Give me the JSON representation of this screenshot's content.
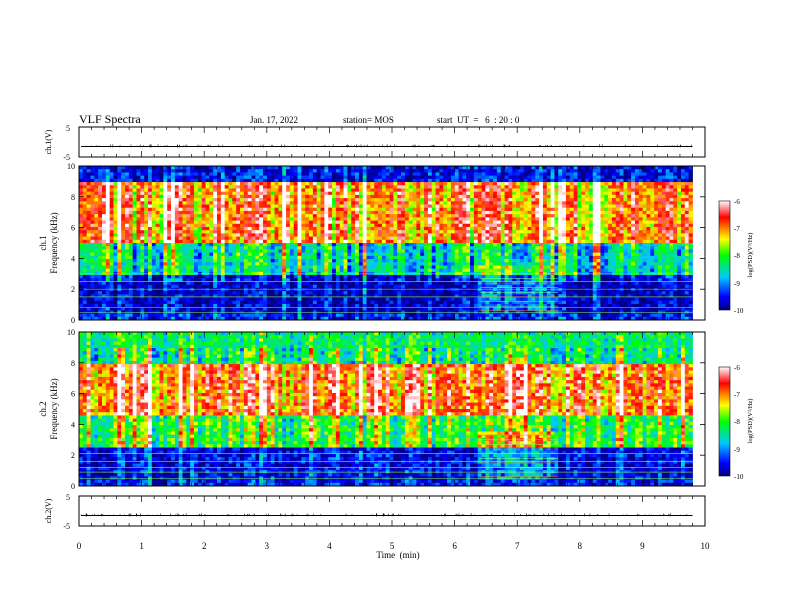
{
  "header": {
    "title": "VLF Spectra",
    "date": "Jan. 17, 2022",
    "station": "station= MOS",
    "start_ut": "start  UT  =   6  : 20 : 0"
  },
  "x_axis": {
    "label": "Time  (min)",
    "ticks": [
      "0",
      "1",
      "2",
      "3",
      "4",
      "5",
      "6",
      "7",
      "8",
      "9",
      "10"
    ]
  },
  "panels": {
    "ch1_waveform": {
      "label": "ch.1(V)",
      "ticks": [
        "5",
        "-5"
      ]
    },
    "ch1_spectrogram": {
      "label_line1": "ch.1",
      "label_line2": "Frequency (kHz)",
      "ticks": [
        "10",
        "8",
        "6",
        "4",
        "2",
        "0"
      ]
    },
    "ch2_spectrogram": {
      "label_line1": "ch.2",
      "label_line2": "Frequency (kHz)",
      "ticks": [
        "10",
        "8",
        "6",
        "4",
        "2",
        "0"
      ]
    },
    "ch2_waveform": {
      "label": "ch.2(V)",
      "ticks": [
        "5",
        "-5"
      ]
    }
  },
  "colorbars": [
    {
      "label": "log(PSD)(V²/Hz)",
      "ticks": [
        "-6",
        "-7",
        "-8",
        "-9",
        "-10"
      ]
    },
    {
      "label": "log(PSD)(V²/Hz)",
      "ticks": [
        "-6",
        "-7",
        "-8",
        "-9",
        "-10"
      ]
    }
  ],
  "colors": {
    "background": "#000080",
    "low": "#0000ff",
    "mid_low": "#00c8ff",
    "mid": "#00ff00",
    "mid_high": "#ffff00",
    "high": "#ff0000",
    "peak": "#ffffff"
  },
  "chart_data": [
    {
      "type": "line",
      "name": "ch.1(V)",
      "xlim": [
        0,
        10
      ],
      "ylim": [
        -5,
        5
      ],
      "x_unit": "min",
      "approx_level": -1.5
    },
    {
      "type": "heatmap",
      "name": "ch.1",
      "xlim": [
        0,
        10
      ],
      "ylim": [
        0,
        10
      ],
      "x_unit": "min",
      "y_unit": "kHz",
      "colorbar_range": [
        -10,
        -6
      ],
      "data_end_min": 9.8,
      "bands": [
        {
          "kHz": [
            0,
            0.4
          ],
          "log_psd": -9.5
        },
        {
          "kHz": [
            0.4,
            3.0
          ],
          "log_psd": -9.8
        },
        {
          "kHz": [
            3.0,
            5.0
          ],
          "log_psd": -8.6
        },
        {
          "kHz": [
            5.0,
            9.0
          ],
          "log_psd": -7.0
        },
        {
          "kHz": [
            9.0,
            10.0
          ],
          "log_psd": -9.6
        }
      ],
      "persistent_line_frequencies_kHz": [
        0.5,
        0.8,
        1.5,
        2.0,
        2.5,
        3.0
      ],
      "burst_interval_min": [
        6.4,
        7.65
      ]
    },
    {
      "type": "heatmap",
      "name": "ch.2",
      "xlim": [
        0,
        10
      ],
      "ylim": [
        0,
        10
      ],
      "x_unit": "min",
      "y_unit": "kHz",
      "colorbar_range": [
        -10,
        -6
      ],
      "data_end_min": 9.8,
      "bands": [
        {
          "kHz": [
            0,
            0.4
          ],
          "log_psd": -9.5
        },
        {
          "kHz": [
            0.4,
            2.5
          ],
          "log_psd": -9.6
        },
        {
          "kHz": [
            2.5,
            4.5
          ],
          "log_psd": -8.0
        },
        {
          "kHz": [
            4.5,
            8.0
          ],
          "log_psd": -6.8
        },
        {
          "kHz": [
            8.0,
            10.0
          ],
          "log_psd": -8.3
        }
      ],
      "persistent_line_frequencies_kHz": [
        0.5,
        0.9,
        1.2,
        1.6,
        2.1
      ],
      "burst_interval_min": [
        6.4,
        7.65
      ]
    },
    {
      "type": "line",
      "name": "ch.2(V)",
      "xlim": [
        0,
        10
      ],
      "ylim": [
        -5,
        5
      ],
      "x_unit": "min",
      "approx_level": -1.5
    }
  ]
}
